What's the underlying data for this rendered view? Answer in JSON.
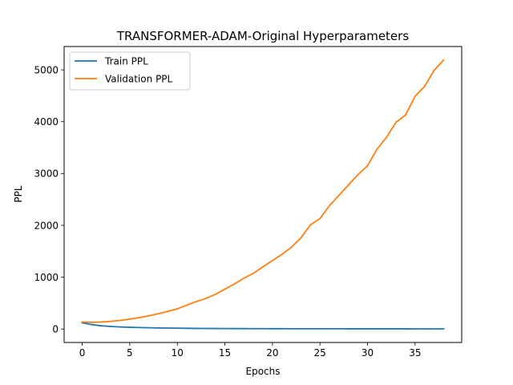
{
  "chart_data": {
    "type": "line",
    "title": "TRANSFORMER-ADAM-Original Hyperparameters",
    "xlabel": "Epochs",
    "ylabel": "PPL",
    "xlim": [
      -1.9,
      39.9
    ],
    "ylim": [
      -260,
      5450
    ],
    "xticks": [
      0,
      5,
      10,
      15,
      20,
      25,
      30,
      35
    ],
    "yticks": [
      0,
      1000,
      2000,
      3000,
      4000,
      5000
    ],
    "grid": false,
    "legend_position": "top-left",
    "x": [
      0,
      1,
      2,
      3,
      4,
      5,
      6,
      7,
      8,
      9,
      10,
      11,
      12,
      13,
      14,
      15,
      16,
      17,
      18,
      19,
      20,
      21,
      22,
      23,
      24,
      25,
      26,
      27,
      28,
      29,
      30,
      31,
      32,
      33,
      34,
      35,
      36,
      37,
      38
    ],
    "series": [
      {
        "name": "Train PPL",
        "color": "#1f77b4",
        "values": [
          120,
          85,
          62,
          50,
          40,
          33,
          28,
          24,
          21,
          18,
          16,
          14,
          12,
          11,
          10,
          9,
          8,
          7.5,
          7,
          6.5,
          6,
          5.8,
          5.5,
          5.2,
          5,
          4.8,
          4.6,
          4.5,
          4.3,
          4.2,
          4.1,
          4,
          3.9,
          3.8,
          3.7,
          3.6,
          3.5,
          3.4,
          3.3
        ]
      },
      {
        "name": "Validation PPL",
        "color": "#ff7f0e",
        "values": [
          135,
          130,
          135,
          148,
          165,
          190,
          220,
          255,
          295,
          340,
          390,
          460,
          530,
          590,
          670,
          770,
          870,
          980,
          1075,
          1200,
          1320,
          1440,
          1580,
          1760,
          2010,
          2130,
          2380,
          2580,
          2780,
          2980,
          3150,
          3470,
          3700,
          3990,
          4130,
          4490,
          4680,
          4990,
          5190
        ]
      }
    ]
  }
}
